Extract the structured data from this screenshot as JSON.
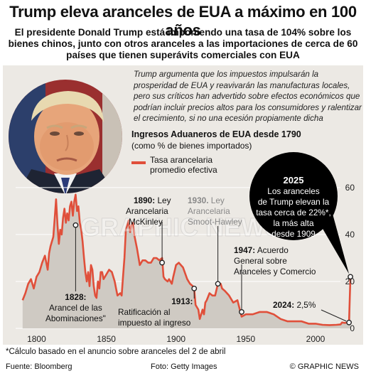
{
  "headline": "Trump eleva aranceles de EUA a máximo en 100 años",
  "subhead": "El presidente Donald Trump está imponiendo una tasa de 104% sobre los bienes chinos, junto con otros aranceles a las importaciones de cerca de 60 países que tienen superávits comerciales con EUA",
  "intro": "Trump argumenta que los impuestos impulsarán la prosperidad de EUA  y reavivarán las manufacturas locales, pero sus críticos han advertido sobre efectos económicos que podrían incluir precios altos para los consumidores y ralentizar el crecimiento, si no una ecesión propiamente dicha",
  "footnote": "*Cálculo basado en el anuncio sobre aranceles del 2 de abril",
  "footer": {
    "source": "Fuente: Bloomberg",
    "photo": "Foto: Getty Images",
    "brand": "© GRAPHIC NEWS"
  },
  "watermark": "GRAPHIC NEWS",
  "colors": {
    "line": "#e04f3a",
    "area": "#cfcac3",
    "panel": "#ece9e4",
    "callout": "#000000"
  },
  "chart_data": {
    "type": "area",
    "title": "Ingresos Aduaneros de EUA desde 1790",
    "subtitle": "(como % de bienes importados)",
    "legend": [
      "Tasa arancelaria promedio efectiva"
    ],
    "x_ticks": [
      "1800",
      "1850",
      "1900",
      "1950",
      "2000"
    ],
    "y_ticks": [
      "0",
      "20",
      "40",
      "60"
    ],
    "xlim": [
      1785,
      2027
    ],
    "ylim": [
      0,
      63
    ],
    "series": [
      {
        "name": "Tasa arancelaria promedio efectiva",
        "x": [
          1790,
          1792,
          1794,
          1796,
          1798,
          1800,
          1802,
          1804,
          1806,
          1808,
          1809,
          1810,
          1812,
          1813,
          1814,
          1815,
          1816,
          1817,
          1818,
          1819,
          1820,
          1821,
          1822,
          1823,
          1824,
          1825,
          1826,
          1827,
          1828,
          1829,
          1830,
          1831,
          1832,
          1833,
          1834,
          1835,
          1836,
          1837,
          1838,
          1839,
          1840,
          1841,
          1842,
          1843,
          1844,
          1845,
          1846,
          1847,
          1848,
          1850,
          1852,
          1854,
          1856,
          1857,
          1858,
          1860,
          1861,
          1862,
          1863,
          1864,
          1865,
          1866,
          1867,
          1868,
          1869,
          1870,
          1872,
          1874,
          1876,
          1878,
          1880,
          1882,
          1884,
          1886,
          1888,
          1890,
          1891,
          1892,
          1894,
          1895,
          1897,
          1898,
          1900,
          1902,
          1905,
          1908,
          1910,
          1912,
          1913,
          1914,
          1916,
          1917,
          1918,
          1919,
          1920,
          1921,
          1922,
          1924,
          1926,
          1928,
          1930,
          1932,
          1933,
          1935,
          1938,
          1941,
          1944,
          1947,
          1950,
          1955,
          1960,
          1965,
          1970,
          1975,
          1980,
          1985,
          1990,
          1995,
          2000,
          2005,
          2010,
          2015,
          2018,
          2019,
          2021,
          2023,
          2024,
          2025
        ],
        "values": [
          12,
          15,
          19,
          21,
          17,
          22,
          24,
          28,
          31,
          25,
          32,
          35,
          39,
          47,
          55,
          44,
          36,
          42,
          40,
          47,
          51,
          45,
          49,
          46,
          52,
          54,
          48,
          54,
          57,
          50,
          52,
          45,
          42,
          37,
          30,
          24,
          20,
          24,
          18,
          27,
          25,
          18,
          14,
          13,
          20,
          17,
          24,
          24,
          21,
          23,
          25,
          24,
          20,
          17,
          14,
          15,
          14,
          22,
          30,
          42,
          44,
          46,
          41,
          44,
          45,
          40,
          34,
          27,
          29,
          29,
          28,
          28,
          30,
          30,
          29,
          30,
          22,
          21,
          20,
          21,
          19,
          22,
          27,
          28,
          26,
          21,
          19,
          18,
          17,
          10,
          8,
          4,
          6,
          8,
          6,
          11,
          12,
          15,
          14,
          14,
          19,
          19,
          17,
          16,
          14,
          11,
          12,
          5,
          6,
          6,
          7,
          7,
          6,
          4,
          3,
          3,
          3,
          2,
          2,
          1.5,
          1.4,
          1.5,
          1.7,
          2.5,
          2.3,
          2.5,
          2.5,
          22
        ]
      }
    ],
    "annotations": [
      {
        "year": "1828:",
        "text": [
          "Arancel de las",
          "Abominaciones\""
        ]
      },
      {
        "year": "1890:",
        "text": [
          "Ley",
          "Arancelaria",
          "McKinley"
        ]
      },
      {
        "year": "1930.",
        "text": [
          "Ley",
          "Arancelaria",
          "Smoot-Hawley"
        ]
      },
      {
        "year": "1913:",
        "text": [
          "Ratificación al",
          "impuesto al ingreso"
        ]
      },
      {
        "year": "1947:",
        "text": [
          "Acuerdo",
          "General sobre",
          "Aranceles y Comercio"
        ]
      },
      {
        "year": "2024:",
        "text": [
          "2,5%"
        ]
      },
      {
        "year": "2025",
        "text": [
          "Los aranceles",
          "de Trump elevan la",
          "tasa cerca de 22%*,",
          "la más alta",
          "desde 1909"
        ]
      }
    ]
  }
}
